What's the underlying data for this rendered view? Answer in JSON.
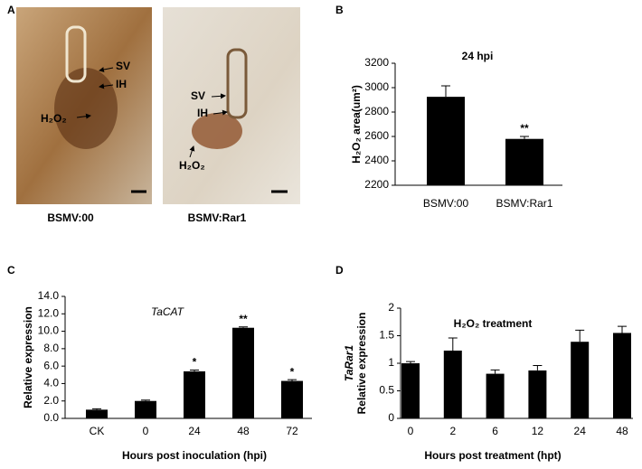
{
  "micrographs": {
    "panel_label": "A",
    "images": [
      {
        "caption": "BSMV:00",
        "annotations": [
          "SV",
          "IH",
          "H₂O₂"
        ]
      },
      {
        "caption": "BSMV:Rar1",
        "annotations": [
          "SV",
          "IH",
          "H₂O₂"
        ]
      }
    ]
  },
  "chart_data": [
    {
      "type": "bar",
      "panel_label": "B",
      "title": "24 hpi",
      "ylabel": "H₂O₂ area(um²)",
      "categories": [
        "BSMV:00",
        "BSMV:Rar1"
      ],
      "values": [
        2925,
        2580
      ],
      "errors": [
        90,
        20
      ],
      "annotations": [
        null,
        "**"
      ],
      "color": "#000000",
      "ylim": [
        2200,
        3200
      ],
      "yticks": [
        2200,
        2400,
        2600,
        2800,
        3000,
        3200
      ]
    },
    {
      "type": "bar",
      "panel_label": "C",
      "title": "TaCAT",
      "xlabel": "Hours post inoculation (hpi)",
      "ylabel": "Relative expression",
      "categories": [
        "CK",
        "0",
        "24",
        "48",
        "72"
      ],
      "values": [
        1.0,
        2.0,
        5.4,
        10.4,
        4.3
      ],
      "errors": [
        0.1,
        0.1,
        0.15,
        0.1,
        0.15
      ],
      "annotations": [
        null,
        null,
        "*",
        "**",
        "*"
      ],
      "color": "#000000",
      "ylim": [
        0,
        14
      ],
      "yticks": [
        {
          "value": 0,
          "label": "0.0"
        },
        {
          "value": 2,
          "label": "2.0"
        },
        {
          "value": 4,
          "label": "4.0"
        },
        {
          "value": 6,
          "label": "6.0"
        },
        {
          "value": 8,
          "label": "8.0"
        },
        {
          "value": 10,
          "label": "10.0"
        },
        {
          "value": 12,
          "label": "12.0"
        },
        {
          "value": 14,
          "label": "14.0"
        }
      ]
    },
    {
      "type": "bar",
      "panel_label": "D",
      "title": "H₂O₂ treatment",
      "xlabel": "Hours post treatment (hpt)",
      "ylabel": [
        "TaRar1",
        "Relative expression"
      ],
      "categories": [
        "0",
        "2",
        "6",
        "12",
        "24",
        "48"
      ],
      "values": [
        1.0,
        1.23,
        0.81,
        0.87,
        1.39,
        1.55
      ],
      "errors": [
        0.03,
        0.23,
        0.07,
        0.09,
        0.21,
        0.12
      ],
      "color": "#000000",
      "ylim": [
        0,
        2
      ],
      "yticks": [
        0,
        0.5,
        1,
        1.5,
        2
      ]
    }
  ]
}
